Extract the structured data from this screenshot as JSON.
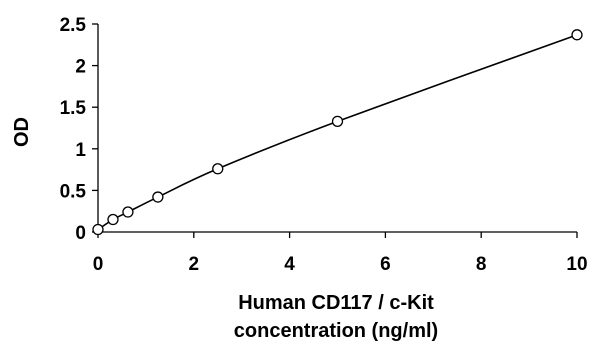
{
  "chart_data": {
    "type": "scatter",
    "title": "",
    "xlabel_lines": [
      "Human CD117 / c-Kit",
      "concentration (ng/ml)"
    ],
    "ylabel": "OD",
    "xlim": [
      0,
      10
    ],
    "ylim": [
      0,
      2.5
    ],
    "x_ticks": [
      0,
      2,
      4,
      6,
      8,
      10
    ],
    "y_ticks": [
      0,
      0.5,
      1,
      1.5,
      2,
      2.5
    ],
    "x_tick_labels": [
      "0",
      "2",
      "4",
      "6",
      "8",
      "10"
    ],
    "y_tick_labels": [
      "0",
      "0.5",
      "1",
      "1.5",
      "2",
      "2.5"
    ],
    "grid": false,
    "legend": false,
    "series": [
      {
        "marker": "open-circle",
        "trendline": "smooth",
        "points": [
          {
            "x": 0,
            "y": 0.03
          },
          {
            "x": 0.313,
            "y": 0.15
          },
          {
            "x": 0.625,
            "y": 0.24
          },
          {
            "x": 1.25,
            "y": 0.42
          },
          {
            "x": 2.5,
            "y": 0.76
          },
          {
            "x": 5,
            "y": 1.33
          },
          {
            "x": 10,
            "y": 2.37
          }
        ]
      }
    ],
    "colors": {
      "line": "#000000",
      "marker_fill": "#ffffff",
      "marker_stroke": "#000000"
    }
  }
}
